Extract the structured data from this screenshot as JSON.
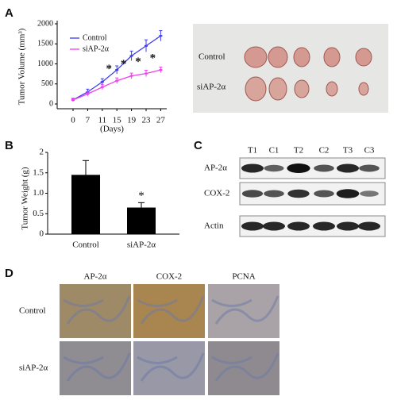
{
  "chart_data": [
    {
      "type": "line",
      "ylabel": "Tumor Volume (mm³)",
      "xlabel": "(Days)",
      "categories": [
        "0",
        "7",
        "11",
        "15",
        "19",
        "23",
        "27"
      ],
      "ylim": [
        0,
        2000
      ],
      "yticks": [
        0,
        500,
        1000,
        1500,
        2000
      ],
      "series": [
        {
          "name": "Control",
          "color": "#3b3bf0",
          "values": [
            100,
            300,
            550,
            850,
            1200,
            1450,
            1700
          ],
          "errors": [
            40,
            70,
            80,
            100,
            120,
            150,
            130
          ]
        },
        {
          "name": "siAP-2α",
          "color": "#f03cf0",
          "values": [
            100,
            250,
            420,
            580,
            700,
            760,
            850
          ],
          "errors": [
            30,
            50,
            60,
            70,
            70,
            80,
            70
          ]
        }
      ],
      "annotations": [
        {
          "text": "*",
          "x": "15"
        },
        {
          "text": "*",
          "x": "19"
        },
        {
          "text": "*",
          "x": "23"
        },
        {
          "text": "*",
          "x": "27"
        }
      ]
    },
    {
      "type": "bar",
      "ylabel": "Tumor Weight (g)",
      "color": "#000000",
      "categories": [
        "Control",
        "siAP-2α"
      ],
      "values": [
        1.45,
        0.65
      ],
      "errors": [
        0.35,
        0.12
      ],
      "ylim": [
        0,
        2
      ],
      "yticks": [
        0,
        0.5,
        {
          "value": 1,
          "label": "1.0"
        },
        1.5,
        2
      ],
      "annotations": [
        {
          "text": "*",
          "x": "siAP-2α"
        }
      ]
    }
  ],
  "panel_labels": [
    "A",
    "B",
    "C",
    "D"
  ],
  "tumor_photo": {
    "rows": [
      "Control",
      "siAP-2α"
    ]
  },
  "western_blot": {
    "lanes": [
      "T1",
      "C1",
      "T2",
      "C2",
      "T3",
      "C3"
    ],
    "rows": [
      "AP-2α",
      "COX-2",
      "Actin"
    ]
  },
  "ihc": {
    "columns": [
      "AP-2α",
      "COX-2",
      "PCNA"
    ],
    "rows": [
      "Control",
      "siAP-2α"
    ]
  }
}
